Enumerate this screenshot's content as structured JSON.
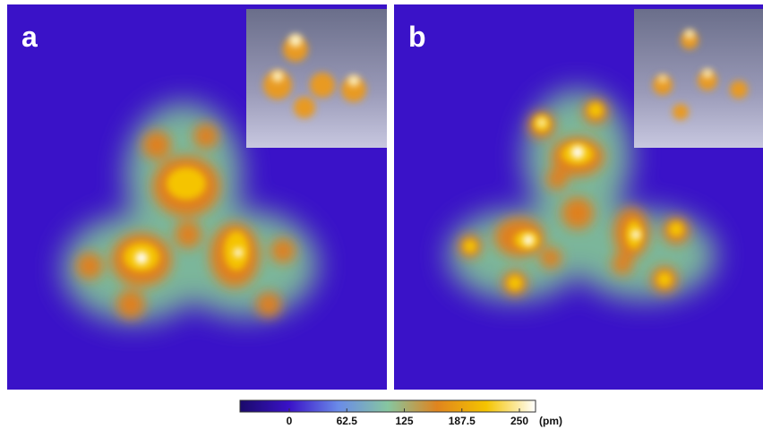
{
  "panels": [
    {
      "label": "a"
    },
    {
      "label": "b"
    }
  ],
  "colorbar": {
    "xlim": [
      -53.5,
      267.5
    ],
    "xticks": [
      0,
      62.5,
      125,
      187.5,
      250
    ],
    "unit": "(pm)",
    "colors": [
      "#1a0a6a",
      "#3a12c8",
      "#6a8be8",
      "#86c6a0",
      "#e0841e",
      "#f4c400",
      "#ffffff"
    ]
  }
}
